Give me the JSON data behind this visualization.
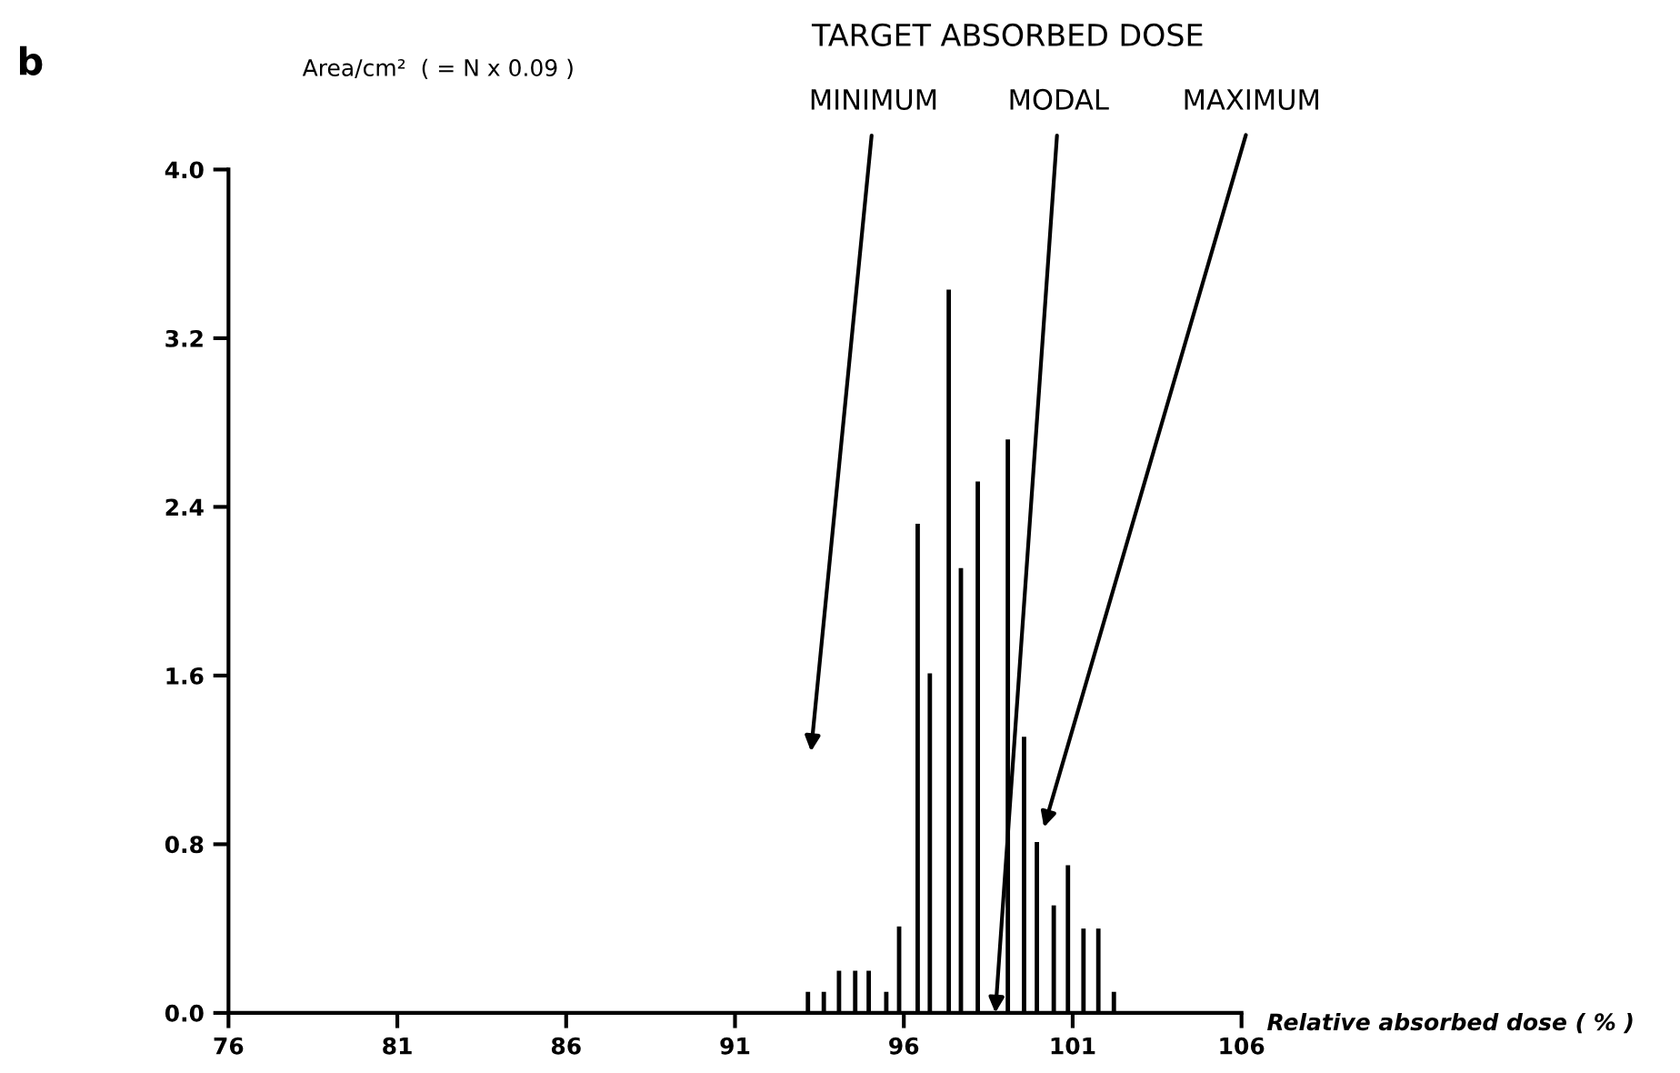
{
  "chart_data": {
    "type": "bar",
    "title": "TARGET ABSORBED DOSE",
    "ylabel": "Area/cm²  ( = N x 0.09 )",
    "xlabel": "Relative absorbed dose ( % )",
    "x": [
      93.16,
      93.63,
      94.08,
      94.56,
      94.96,
      95.48,
      95.86,
      96.41,
      96.77,
      97.33,
      97.69,
      98.19,
      99.08,
      99.56,
      99.94,
      100.44,
      100.86,
      101.32,
      101.76,
      102.22
    ],
    "values": [
      0.1,
      0.1,
      0.2,
      0.2,
      0.2,
      0.1,
      0.41,
      2.32,
      1.61,
      3.43,
      2.11,
      2.52,
      2.72,
      1.31,
      0.81,
      0.51,
      0.7,
      0.4,
      0.4,
      0.1
    ],
    "color": "#000000",
    "xlim": [
      76,
      106
    ],
    "xticks": [
      76,
      81,
      86,
      91,
      96,
      101,
      106
    ],
    "ylim": [
      0,
      4.0
    ],
    "yticks": [
      {
        "value": 0,
        "label": "0.0"
      },
      {
        "value": 0.8,
        "label": "0.8"
      },
      {
        "value": 1.6,
        "label": "1.6"
      },
      {
        "value": 2.4,
        "label": "2.4"
      },
      {
        "value": 3.2,
        "label": "3.2"
      },
      {
        "value": 4.0,
        "label": "4.0"
      }
    ],
    "grid": false,
    "annotations": [
      {
        "text": "b"
      },
      "MINIMUM",
      "MODAL",
      "MAXIMUM"
    ]
  }
}
